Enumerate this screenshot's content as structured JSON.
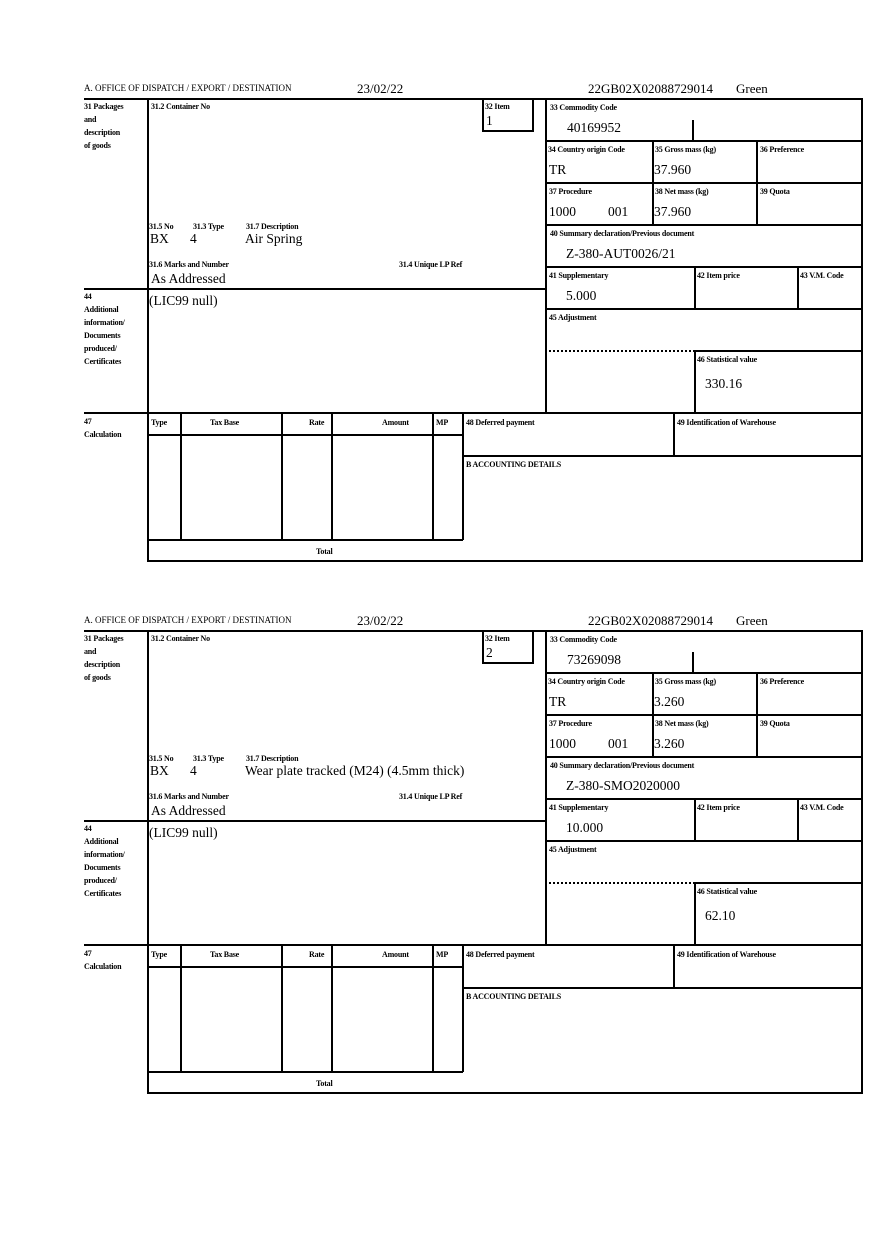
{
  "labels": {
    "office": "A.  OFFICE OF DISPATCH / EXPORT / DESTINATION",
    "packages": [
      "31 Packages",
      "and",
      "description",
      "of goods"
    ],
    "container_no": "31.2 Container No",
    "item": "32 Item",
    "no": "31.5 No",
    "type": "31.3 Type",
    "description": "31.7 Description",
    "marks": "31.6 Marks and Number",
    "unique_ref": "31.4 Unique LP Ref",
    "commodity_code": "33 Commodity Code",
    "country_origin": "34 Country origin Code",
    "gross_mass": "35 Gross mass (kg)",
    "preference": "36 Preference",
    "procedure": "37 Procedure",
    "net_mass": "38 Net mass (kg)",
    "quota": "39 Quota",
    "summary_decl": "40 Summary declaration/Previous document",
    "supplementary": "41 Supplementary",
    "item_price": "42 Item price",
    "vm_code": "43 V.M. Code",
    "additional": [
      "44",
      "Additional",
      "information/",
      "Documents",
      "produced/",
      "Certificates"
    ],
    "adjustment": "45 Adjustment",
    "statistical_value": "46 Statistical value",
    "calculation": [
      "47",
      "Calculation"
    ],
    "calc_cols": [
      "Type",
      "Tax Base",
      "Rate",
      "Amount",
      "MP"
    ],
    "total": "Total",
    "deferred_payment": "48 Deferred payment",
    "warehouse": "49 Identification of Warehouse",
    "accounting": "B ACCOUNTING DETAILS"
  },
  "blocks": [
    {
      "date": "23/02/22",
      "reference": "22GB02X02088729014",
      "route": "Green",
      "item": "1",
      "no": "BX",
      "type": "4",
      "description": "Air Spring",
      "marks": "As Addressed",
      "commodity_code": "40169952",
      "country_origin": "TR",
      "gross_mass": "37.960",
      "procedure": "1000",
      "procedure_ext": "001",
      "net_mass": "37.960",
      "summary_decl": "Z-380-AUT0026/21",
      "supplementary": "5.000",
      "additional_info": "(LIC99 null)",
      "statistical_value": "330.16"
    },
    {
      "date": "23/02/22",
      "reference": "22GB02X02088729014",
      "route": "Green",
      "item": "2",
      "no": "BX",
      "type": "4",
      "description": "Wear plate tracked (M24) (4.5mm thick)",
      "marks": "As Addressed",
      "commodity_code": "73269098",
      "country_origin": "TR",
      "gross_mass": "3.260",
      "procedure": "1000",
      "procedure_ext": "001",
      "net_mass": "3.260",
      "summary_decl": "Z-380-SMO2020000",
      "supplementary": "10.000",
      "additional_info": "(LIC99 null)",
      "statistical_value": "62.10"
    }
  ]
}
